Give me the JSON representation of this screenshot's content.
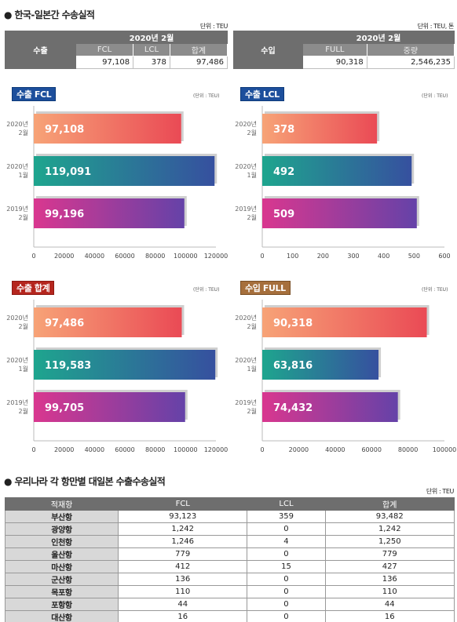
{
  "section1": {
    "title": "● 한국-일본간 수송실적",
    "export_unit": "단위 : TEU",
    "import_unit": "단위 : TEU, 톤",
    "export": {
      "label": "수출",
      "period": "2020년 2월",
      "cols": [
        "FCL",
        "LCL",
        "합계"
      ],
      "values": [
        "97,108",
        "378",
        "97,486"
      ]
    },
    "import": {
      "label": "수입",
      "period": "2020년 2월",
      "cols": [
        "FULL",
        "중량"
      ],
      "values": [
        "90,318",
        "2,546,235"
      ]
    }
  },
  "chart_data": [
    {
      "type": "bar",
      "title": "수출 FCL",
      "unit": "(단위 : TEU)",
      "categories": [
        "2020년 2월",
        "2020년 1월",
        "2019년 2월"
      ],
      "values": [
        97108,
        119091,
        99196
      ],
      "value_labels": [
        "97,108",
        "119,091",
        "99,196"
      ],
      "xticks": [
        "0",
        "20000",
        "40000",
        "60000",
        "80000",
        "100000",
        "120000"
      ],
      "xlim": [
        0,
        120000
      ],
      "badge_color": "blue"
    },
    {
      "type": "bar",
      "title": "수출 LCL",
      "unit": "(단위 : TEU)",
      "categories": [
        "2020년 2월",
        "2020년 1월",
        "2019년 2월"
      ],
      "values": [
        378,
        492,
        509
      ],
      "value_labels": [
        "378",
        "492",
        "509"
      ],
      "xticks": [
        "0",
        "100",
        "200",
        "300",
        "400",
        "500",
        "600"
      ],
      "xlim": [
        0,
        600
      ],
      "badge_color": "blue"
    },
    {
      "type": "bar",
      "title": "수출 합계",
      "unit": "(단위 : TEU)",
      "categories": [
        "2020년 2월",
        "2020년 1월",
        "2019년 2월"
      ],
      "values": [
        97486,
        119583,
        99705
      ],
      "value_labels": [
        "97,486",
        "119,583",
        "99,705"
      ],
      "xticks": [
        "0",
        "20000",
        "40000",
        "60000",
        "80000",
        "100000",
        "120000"
      ],
      "xlim": [
        0,
        120000
      ],
      "badge_color": "red"
    },
    {
      "type": "bar",
      "title": "수입 FULL",
      "unit": "(단위 : TEU)",
      "categories": [
        "2020년 2월",
        "2020년 1월",
        "2019년 2월"
      ],
      "values": [
        90318,
        63816,
        74432
      ],
      "value_labels": [
        "90,318",
        "63,816",
        "74,432"
      ],
      "xticks": [
        "0",
        "20000",
        "40000",
        "60000",
        "80000",
        "100000"
      ],
      "xlim": [
        0,
        100000
      ],
      "badge_color": "tan"
    }
  ],
  "section2": {
    "title": "● 우리나라 각 항만별 대일본 수출수송실적",
    "unit": "단위 : TEU",
    "headers": [
      "적재항",
      "FCL",
      "LCL",
      "합계"
    ],
    "rows": [
      [
        "부산항",
        "93,123",
        "359",
        "93,482"
      ],
      [
        "광양항",
        "1,242",
        "0",
        "1,242"
      ],
      [
        "인천항",
        "1,246",
        "4",
        "1,250"
      ],
      [
        "울산항",
        "779",
        "0",
        "779"
      ],
      [
        "마산항",
        "412",
        "15",
        "427"
      ],
      [
        "군산항",
        "136",
        "0",
        "136"
      ],
      [
        "목포항",
        "110",
        "0",
        "110"
      ],
      [
        "포항항",
        "44",
        "0",
        "44"
      ],
      [
        "대산항",
        "16",
        "0",
        "16"
      ]
    ]
  },
  "colors": {
    "row1_gradient": [
      "#f7a377",
      "#ea4a55"
    ],
    "row2_gradient": [
      "#1ea58e",
      "#36509f"
    ],
    "row3_gradient": [
      "#d9378f",
      "#6542a8"
    ]
  }
}
